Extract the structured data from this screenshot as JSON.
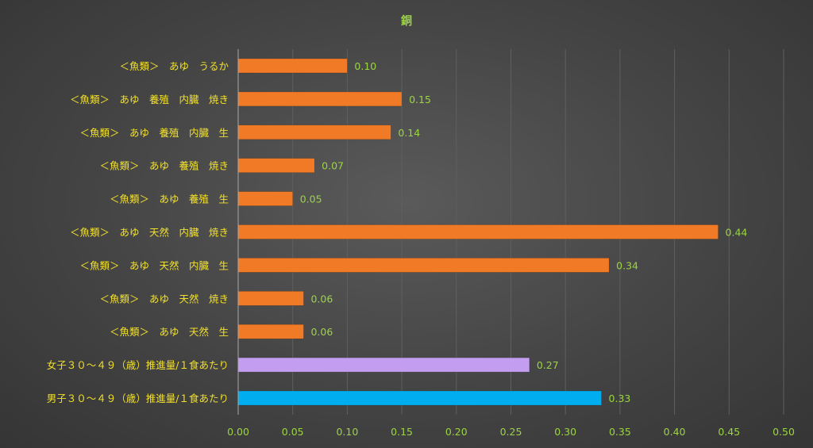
{
  "chart_data": {
    "type": "bar",
    "orientation": "horizontal",
    "title": "銅",
    "categories": [
      "＜魚類＞　あゆ　うるか",
      "＜魚類＞　あゆ　養殖　内臓　焼き",
      "＜魚類＞　あゆ　養殖　内臓　生",
      "＜魚類＞　あゆ　養殖　焼き",
      "＜魚類＞　あゆ　養殖　生",
      "＜魚類＞　あゆ　天然　内臓　焼き",
      "＜魚類＞　あゆ　天然　内臓　生",
      "＜魚類＞　あゆ　天然　焼き",
      "＜魚類＞　あゆ　天然　生",
      "女子３０～４９（歳）推進量/１食あたり",
      "男子３０～４９（歳）推進量/１食あたり"
    ],
    "values": [
      0.1,
      0.15,
      0.14,
      0.07,
      0.05,
      0.44,
      0.34,
      0.06,
      0.06,
      0.267,
      0.333
    ],
    "data_labels": [
      "0.10",
      "0.15",
      "0.14",
      "0.07",
      "0.05",
      "0.44",
      "0.34",
      "0.06",
      "0.06",
      "0.27",
      "0.33"
    ],
    "bar_colors": [
      "#f07a26",
      "#f07a26",
      "#f07a26",
      "#f07a26",
      "#f07a26",
      "#f07a26",
      "#f07a26",
      "#f07a26",
      "#f07a26",
      "#c39df0",
      "#00aeef"
    ],
    "xlim": [
      0,
      0.5
    ],
    "xticks": [
      "0.00",
      "0.05",
      "0.10",
      "0.15",
      "0.20",
      "0.25",
      "0.30",
      "0.35",
      "0.40",
      "0.45",
      "0.50"
    ],
    "xlabel": "",
    "ylabel": "",
    "grid": "vertical",
    "legend": "none",
    "colors": {
      "text_category": "#f2e02a",
      "text_values": "#9bd443"
    }
  }
}
